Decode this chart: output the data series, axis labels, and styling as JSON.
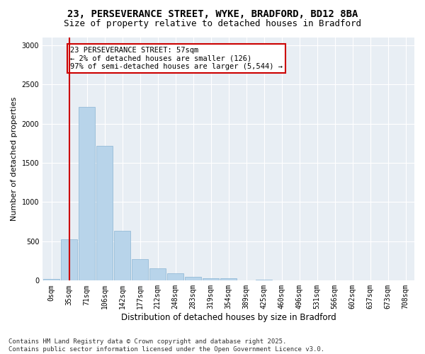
{
  "title_line1": "23, PERSEVERANCE STREET, WYKE, BRADFORD, BD12 8BA",
  "title_line2": "Size of property relative to detached houses in Bradford",
  "xlabel": "Distribution of detached houses by size in Bradford",
  "ylabel": "Number of detached properties",
  "bar_color": "#b8d4ea",
  "bar_edge_color": "#8ab4d4",
  "bg_color": "#e8eef4",
  "grid_color": "#ffffff",
  "categories": [
    "0sqm",
    "35sqm",
    "71sqm",
    "106sqm",
    "142sqm",
    "177sqm",
    "212sqm",
    "248sqm",
    "283sqm",
    "319sqm",
    "354sqm",
    "389sqm",
    "425sqm",
    "460sqm",
    "496sqm",
    "531sqm",
    "566sqm",
    "602sqm",
    "637sqm",
    "673sqm",
    "708sqm"
  ],
  "values": [
    20,
    530,
    2210,
    1720,
    630,
    270,
    155,
    90,
    50,
    30,
    30,
    0,
    15,
    0,
    0,
    0,
    0,
    0,
    0,
    0,
    0
  ],
  "ylim": [
    0,
    3100
  ],
  "yticks": [
    0,
    500,
    1000,
    1500,
    2000,
    2500,
    3000
  ],
  "vline_x": 1.0,
  "annotation_text": "23 PERSEVERANCE STREET: 57sqm\n← 2% of detached houses are smaller (126)\n97% of semi-detached houses are larger (5,544) →",
  "annotation_box_color": "#ffffff",
  "annotation_box_edge": "#cc0000",
  "vline_color": "#cc0000",
  "footnote_line1": "Contains HM Land Registry data © Crown copyright and database right 2025.",
  "footnote_line2": "Contains public sector information licensed under the Open Government Licence v3.0.",
  "title_fontsize": 10,
  "subtitle_fontsize": 9,
  "xlabel_fontsize": 8.5,
  "ylabel_fontsize": 8,
  "tick_fontsize": 7,
  "annotation_fontsize": 7.5,
  "footnote_fontsize": 6.5
}
